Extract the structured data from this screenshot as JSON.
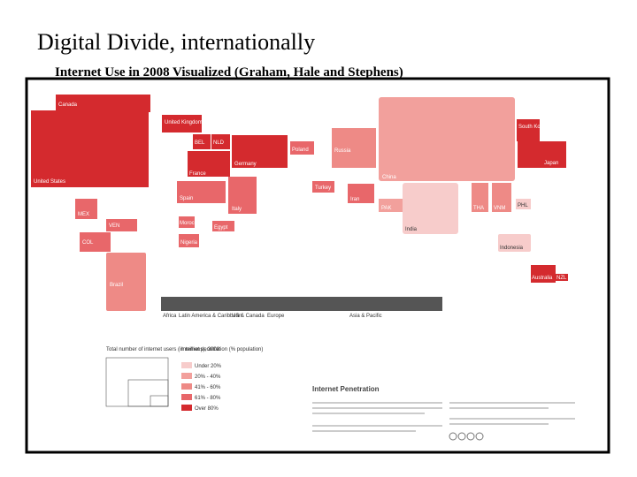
{
  "header": {
    "title": "Digital Divide, internationally",
    "subtitle": "Internet Use in 2008 Visualized (Graham, Hale and Stephens)"
  },
  "map": {
    "countries": [
      "Canada",
      "United States",
      "United Kingdom",
      "BEL",
      "NLD",
      "Germany",
      "France",
      "Spain",
      "Italy",
      "Poland",
      "Russia",
      "China",
      "South Korea",
      "Japan",
      "Turkey",
      "Iran",
      "PAK",
      "India",
      "THA",
      "VNM",
      "PHL",
      "Indonesia",
      "Australia",
      "NZL",
      "MEX",
      "VEN",
      "COL",
      "Brazil",
      "Egypt",
      "Nigeria",
      "Morocco"
    ]
  },
  "regions": [
    "Africa",
    "Latin America & Caribbean",
    "US & Canada",
    "Europe",
    "Asia & Pacific"
  ],
  "legend": {
    "size_title": "Total number of internet users (in millions), 2008",
    "penetration_title": "Internet penetration (% population)",
    "penetration_levels": [
      "Under 20%",
      "20% - 40%",
      "41% - 60%",
      "61% - 80%",
      "Over 80%"
    ]
  },
  "panel_title": "Internet Penetration"
}
